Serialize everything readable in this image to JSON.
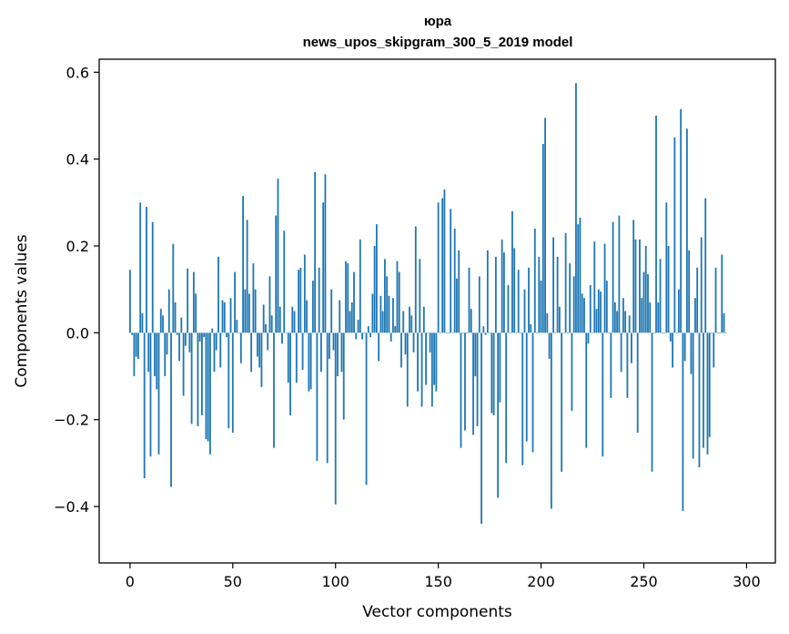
{
  "chart_data": {
    "type": "bar",
    "title_line1": "юра",
    "title_line2": "news_upos_skipgram_300_5_2019 model",
    "xlabel": "Vector components",
    "ylabel": "Components values",
    "xlim": [
      -15,
      314
    ],
    "ylim": [
      -0.53,
      0.63
    ],
    "xticks": [
      {
        "value": 0,
        "label": "0"
      },
      {
        "value": 50,
        "label": "50"
      },
      {
        "value": 100,
        "label": "100"
      },
      {
        "value": 150,
        "label": "150"
      },
      {
        "value": 200,
        "label": "200"
      },
      {
        "value": 250,
        "label": "250"
      },
      {
        "value": 300,
        "label": "300"
      }
    ],
    "yticks": [
      {
        "value": -0.4,
        "label": "−0.4"
      },
      {
        "value": -0.2,
        "label": "−0.2"
      },
      {
        "value": 0.0,
        "label": "0.0"
      },
      {
        "value": 0.2,
        "label": "0.2"
      },
      {
        "value": 0.4,
        "label": "0.4"
      },
      {
        "value": 0.6,
        "label": "0.6"
      }
    ],
    "bar_color": "#1f77b4",
    "values": [
      0.145,
      -0.005,
      -0.1,
      -0.055,
      -0.06,
      0.3,
      0.045,
      -0.335,
      0.29,
      -0.09,
      -0.285,
      0.255,
      -0.1,
      -0.13,
      -0.28,
      0.055,
      0.04,
      -0.1,
      -0.05,
      0.1,
      -0.355,
      0.205,
      0.07,
      -0.005,
      -0.065,
      0.035,
      -0.145,
      -0.03,
      0.148,
      -0.045,
      -0.21,
      0.14,
      0.09,
      -0.215,
      -0.02,
      -0.19,
      -0.01,
      -0.245,
      -0.25,
      -0.28,
      0.01,
      -0.09,
      -0.04,
      0.175,
      -0.08,
      0.075,
      0.07,
      -0.01,
      -0.22,
      0.08,
      -0.23,
      0.14,
      0.03,
      0.0,
      -0.07,
      0.315,
      0.1,
      0.26,
      0.09,
      -0.09,
      0.16,
      0.1,
      -0.055,
      -0.08,
      -0.125,
      0.065,
      0.02,
      -0.04,
      0.13,
      0.04,
      -0.265,
      0.27,
      0.355,
      0.06,
      -0.025,
      0.235,
      0.0,
      -0.115,
      -0.19,
      0.06,
      0.05,
      -0.115,
      0.145,
      0.15,
      -0.085,
      0.18,
      0.075,
      -0.135,
      -0.13,
      0.12,
      0.37,
      -0.295,
      0.15,
      -0.09,
      0.3,
      0.365,
      -0.3,
      -0.06,
      0.1,
      -0.04,
      -0.395,
      -0.1,
      0.075,
      -0.09,
      -0.2,
      0.165,
      0.16,
      0.05,
      0.07,
      0.14,
      -0.015,
      0.03,
      0.215,
      -0.015,
      0.0,
      -0.35,
      0.015,
      -0.01,
      0.09,
      0.2,
      0.25,
      -0.065,
      0.085,
      0.05,
      0.17,
      0.13,
      0.085,
      -0.02,
      0.08,
      0.015,
      0.165,
      0.14,
      -0.08,
      0.05,
      -0.05,
      -0.17,
      0.06,
      0.04,
      -0.045,
      0.245,
      -0.135,
      0.17,
      -0.17,
      0.06,
      -0.12,
      0.0,
      -0.045,
      -0.17,
      -0.12,
      -0.135,
      0.3,
      0.0,
      0.31,
      0.33,
      0.0,
      0.0,
      0.285,
      0.0,
      0.24,
      0.125,
      0.19,
      -0.265,
      0.0,
      -0.225,
      0.0,
      0.15,
      0.055,
      -0.235,
      -0.1,
      -0.215,
      0.13,
      -0.44,
      0.015,
      -0.005,
      0.19,
      0.0,
      -0.185,
      -0.19,
      0.175,
      -0.38,
      -0.16,
      0.215,
      0.185,
      -0.3,
      0.11,
      0.0,
      0.28,
      0.195,
      0.0,
      0.145,
      0.0,
      -0.305,
      0.1,
      -0.25,
      0.15,
      0.02,
      -0.275,
      0.24,
      0.0,
      0.175,
      0.12,
      0.435,
      0.495,
      0.045,
      -0.06,
      -0.405,
      0.22,
      0.0,
      0.175,
      0.06,
      -0.32,
      0.0,
      0.23,
      0.0,
      0.16,
      -0.18,
      0.13,
      0.575,
      0.25,
      0.265,
      0.09,
      0.08,
      -0.265,
      -0.025,
      0.11,
      0.0,
      0.21,
      0.055,
      0.1,
      0.095,
      -0.285,
      0.205,
      0.12,
      0.0,
      -0.15,
      0.255,
      0.07,
      0.05,
      0.27,
      -0.09,
      0.08,
      0.05,
      -0.15,
      0.04,
      -0.07,
      0.26,
      0.215,
      -0.23,
      0.215,
      0.08,
      0.14,
      0.2,
      0.135,
      0.07,
      -0.32,
      0.0,
      0.5,
      0.07,
      0.17,
      0.0,
      0.0,
      0.3,
      0.2,
      -0.02,
      -0.08,
      0.45,
      0.0,
      0.1,
      0.515,
      -0.41,
      -0.065,
      0.47,
      0.19,
      -0.095,
      -0.29,
      0.08,
      0.15,
      -0.31,
      0.22,
      -0.265,
      0.31,
      -0.28,
      -0.24,
      0.0,
      -0.08,
      0.15,
      0.0,
      0.0,
      0.18,
      0.045,
      0.0
    ]
  }
}
